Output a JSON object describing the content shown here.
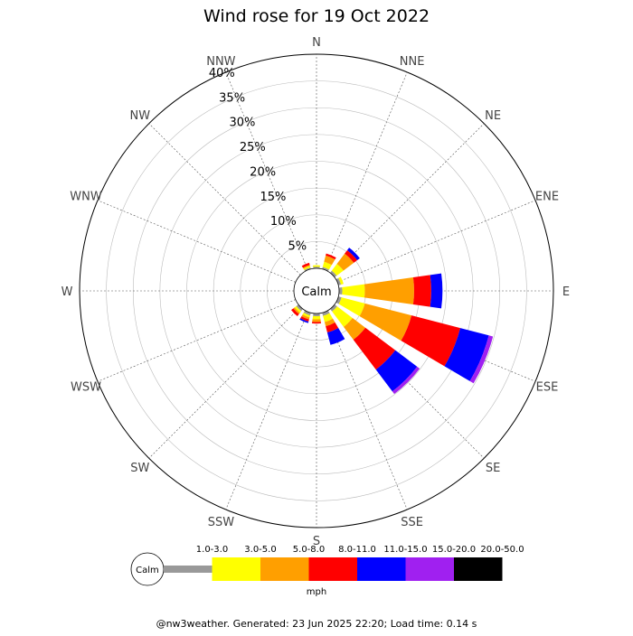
{
  "chart_data": {
    "type": "wind-rose",
    "title": "Wind rose for 19 Oct 2022",
    "calm_label": "Calm",
    "unit": "mph",
    "footer": "@nw3weather. Generated: 23 Jun 2025 22:20; Load time: 0.14 s",
    "radial_max": 40,
    "radial_ticks": [
      "5%",
      "10%",
      "15%",
      "20%",
      "25%",
      "30%",
      "35%",
      "40%"
    ],
    "radial_tick_values": [
      5,
      10,
      15,
      20,
      25,
      30,
      35,
      40
    ],
    "directions": [
      "N",
      "NNE",
      "NE",
      "ENE",
      "E",
      "ESE",
      "SE",
      "SSE",
      "S",
      "SSW",
      "SW",
      "WSW",
      "W",
      "WNW",
      "NW",
      "NNW"
    ],
    "speed_bins": [
      {
        "label": "1.0-3.0",
        "color": "#999999"
      },
      {
        "label": "3.0-5.0",
        "color": "#ffff00"
      },
      {
        "label": "5.0-8.0",
        "color": "#ff9f00"
      },
      {
        "label": "8.0-11.0",
        "color": "#ff0000"
      },
      {
        "label": "11.0-15.0",
        "color": "#0000ff"
      },
      {
        "label": "15.0-20.0",
        "color": "#a020f0"
      },
      {
        "label": "20.0-50.0",
        "color": "#000000"
      }
    ],
    "series": [
      {
        "direction": "N",
        "values": [
          0.3,
          0.3,
          0.0,
          0.0,
          0.0,
          0.0,
          0.0
        ]
      },
      {
        "direction": "NNE",
        "values": [
          0.4,
          1.0,
          1.2,
          0.4,
          0.0,
          0.0,
          0.0
        ]
      },
      {
        "direction": "NE",
        "values": [
          0.5,
          1.6,
          2.4,
          0.8,
          0.6,
          0.0,
          0.0
        ]
      },
      {
        "direction": "ENE",
        "values": [
          0.5,
          0.5,
          0.0,
          0.0,
          0.0,
          0.0,
          0.0
        ]
      },
      {
        "direction": "E",
        "values": [
          0.6,
          4.2,
          9.2,
          3.2,
          2.1,
          0.0,
          0.0
        ]
      },
      {
        "direction": "ESE",
        "values": [
          0.6,
          4.5,
          9.0,
          9.4,
          5.5,
          0.8,
          0.0
        ]
      },
      {
        "direction": "SE",
        "values": [
          0.6,
          3.6,
          3.0,
          7.0,
          5.1,
          0.6,
          0.0
        ]
      },
      {
        "direction": "SSE",
        "values": [
          0.6,
          1.2,
          0.8,
          1.2,
          2.4,
          0.0,
          0.0
        ]
      },
      {
        "direction": "S",
        "values": [
          0.5,
          0.6,
          0.5,
          0.3,
          0.0,
          0.0,
          0.0
        ]
      },
      {
        "direction": "SSW",
        "values": [
          0.5,
          0.4,
          0.4,
          0.4,
          0.3,
          0.0,
          0.0
        ]
      },
      {
        "direction": "SW",
        "values": [
          0.5,
          0.4,
          0.3,
          0.5,
          0.0,
          0.0,
          0.0
        ]
      },
      {
        "direction": "WSW",
        "values": [
          0.0,
          0.0,
          0.0,
          0.0,
          0.0,
          0.0,
          0.0
        ]
      },
      {
        "direction": "W",
        "values": [
          0.0,
          0.0,
          0.0,
          0.0,
          0.0,
          0.0,
          0.0
        ]
      },
      {
        "direction": "WNW",
        "values": [
          0.0,
          0.0,
          0.0,
          0.0,
          0.0,
          0.0,
          0.0
        ]
      },
      {
        "direction": "NW",
        "values": [
          0.0,
          0.0,
          0.0,
          0.0,
          0.0,
          0.0,
          0.0
        ]
      },
      {
        "direction": "NNW",
        "values": [
          0.3,
          0.3,
          0.2,
          0.4,
          0.0,
          0.0,
          0.0
        ]
      }
    ]
  }
}
